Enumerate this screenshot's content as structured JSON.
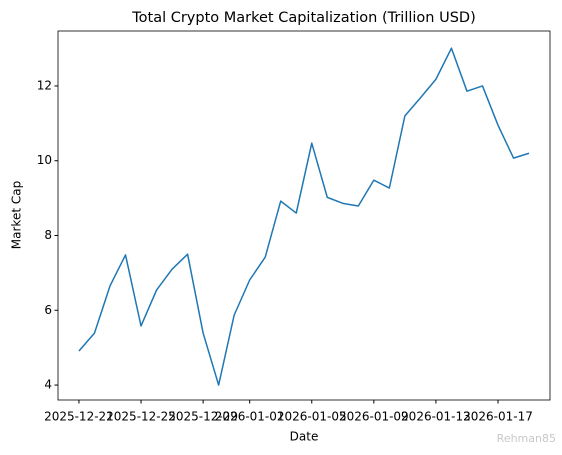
{
  "chart_data": {
    "type": "line",
    "title": "Total Crypto Market Capitalization (Trillion USD)",
    "x_label": "Date",
    "y_label": "Market Cap",
    "x": [
      "2025-12-21",
      "2025-12-22",
      "2025-12-23",
      "2025-12-24",
      "2025-12-25",
      "2025-12-26",
      "2025-12-27",
      "2025-12-28",
      "2025-12-29",
      "2025-12-30",
      "2025-12-31",
      "2026-01-01",
      "2026-01-02",
      "2026-01-03",
      "2026-01-04",
      "2026-01-05",
      "2026-01-06",
      "2026-01-07",
      "2026-01-08",
      "2026-01-09",
      "2026-01-10",
      "2026-01-11",
      "2026-01-12",
      "2026-01-13",
      "2026-01-14",
      "2026-01-15",
      "2026-01-16",
      "2026-01-17",
      "2026-01-18",
      "2026-01-19"
    ],
    "series": [
      {
        "name": "Market Cap",
        "color": "#1f77b4",
        "values": [
          4.91,
          5.39,
          6.65,
          7.48,
          5.58,
          6.54,
          7.1,
          7.5,
          5.39,
          4.0,
          5.87,
          6.81,
          7.42,
          8.92,
          8.6,
          10.47,
          9.02,
          8.86,
          8.79,
          9.48,
          9.27,
          11.2,
          11.68,
          12.18,
          13.01,
          11.86,
          12.0,
          10.95,
          10.07,
          10.2
        ]
      }
    ],
    "xlim": [
      "2025-12-19T15:36",
      "2026-01-20T08:24"
    ],
    "xticks": [
      "2025-12-21",
      "2025-12-25",
      "2025-12-29",
      "2026-01-01",
      "2026-01-05",
      "2026-01-09",
      "2026-01-13",
      "2026-01-17"
    ],
    "ylim": [
      3.6,
      13.47
    ],
    "yticks": [
      4,
      6,
      8,
      10,
      12
    ],
    "grid": false,
    "watermark": "Rehman85"
  }
}
